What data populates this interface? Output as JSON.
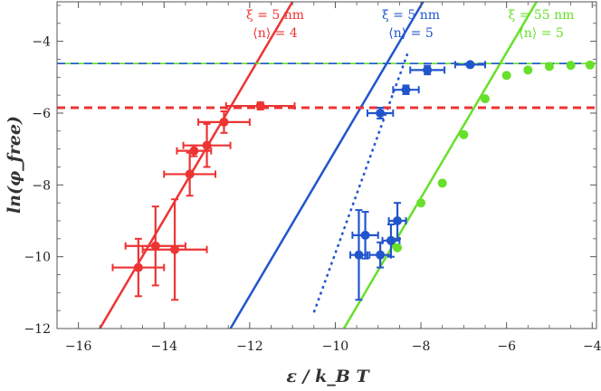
{
  "chart_data": {
    "type": "scatter",
    "title": "",
    "xlabel": "ε / k_B T",
    "ylabel": "ln(φ_free)",
    "xlim": [
      -16.5,
      -3.9
    ],
    "ylim": [
      -12,
      -2.9
    ],
    "xticks": [
      -16,
      -14,
      -12,
      -10,
      -8,
      -6,
      -4
    ],
    "xtick_labels": [
      "−16",
      "−14",
      "−12",
      "−10",
      "−8",
      "−6",
      "−4"
    ],
    "yticks": [
      -12,
      -10,
      -8,
      -6,
      -4
    ],
    "ytick_labels": [
      "−12",
      "−10",
      "−8",
      "−6",
      "−4"
    ],
    "colors": {
      "red": "#ee3333",
      "blue": "#2255cc",
      "green": "#66e02a"
    },
    "annotations": [
      {
        "line1": "ξ = 5 nm",
        "line2": "⟨n⟩ = 4",
        "color": "#ee3333"
      },
      {
        "line1": "ξ = 5 nm",
        "line2": "⟨n⟩ = 5",
        "color": "#2255cc"
      },
      {
        "line1": "ξ = 55 nm",
        "line2": "⟨n⟩ = 5",
        "color": "#66e02a"
      }
    ],
    "lines": [
      {
        "name": "red-fit",
        "color": "#ee3333",
        "dash": "solid",
        "x": [
          -15.5,
          -11.0
        ],
        "y": [
          -12,
          -2.9
        ]
      },
      {
        "name": "blue-fit",
        "color": "#2255cc",
        "dash": "solid",
        "x": [
          -12.45,
          -7.95
        ],
        "y": [
          -12,
          -2.9
        ]
      },
      {
        "name": "blue-dotted-fit",
        "color": "#2255cc",
        "dash": "dot",
        "x": [
          -10.5,
          -8.3
        ],
        "y": [
          -11.55,
          -4.3
        ]
      },
      {
        "name": "green-fit",
        "color": "#66e02a",
        "dash": "solid",
        "x": [
          -9.8,
          -5.3
        ],
        "y": [
          -12,
          -2.9
        ]
      },
      {
        "name": "red-plateau",
        "color": "#ee3333",
        "dash": "dash",
        "x": [
          -16.5,
          -3.9
        ],
        "y": [
          -5.85,
          -5.85
        ]
      },
      {
        "name": "green-plateau",
        "color": "#66e02a",
        "dash": "solid",
        "x": [
          -16.5,
          -3.9
        ],
        "y": [
          -4.62,
          -4.62
        ]
      },
      {
        "name": "blue-plateau",
        "color": "#2255cc",
        "dash": "dash",
        "x": [
          -16.5,
          -3.9
        ],
        "y": [
          -4.62,
          -4.62
        ]
      }
    ],
    "series": [
      {
        "name": "red data",
        "color": "#ee3333",
        "points": [
          {
            "x": -14.6,
            "y": -10.3,
            "xerr": 0.6,
            "yerr": 0.8
          },
          {
            "x": -14.2,
            "y": -9.7,
            "xerr": 0.7,
            "yerr": 1.1
          },
          {
            "x": -13.75,
            "y": -9.8,
            "xerr": 0.75,
            "yerr": 1.4
          },
          {
            "x": -13.4,
            "y": -7.7,
            "xerr": 0.6,
            "yerr": 0.6
          },
          {
            "x": -13.3,
            "y": -7.05,
            "xerr": 0.4,
            "yerr": 0.15
          },
          {
            "x": -13.0,
            "y": -6.9,
            "xerr": 0.55,
            "yerr": 0.6
          },
          {
            "x": -12.6,
            "y": -6.25,
            "xerr": 0.6,
            "yerr": 0.3
          },
          {
            "x": -11.75,
            "y": -5.8,
            "xerr": 0.8,
            "yerr": 0.1
          }
        ]
      },
      {
        "name": "blue data",
        "color": "#2255cc",
        "points": [
          {
            "x": -9.45,
            "y": -9.95,
            "xerr": 0.2,
            "yerr": 1.25
          },
          {
            "x": -9.3,
            "y": -9.4,
            "xerr": 0.3,
            "yerr": 0.65
          },
          {
            "x": -8.95,
            "y": -9.95,
            "xerr": 0.25,
            "yerr": 0.35
          },
          {
            "x": -8.7,
            "y": -9.55,
            "xerr": 0.2,
            "yerr": 0.45
          },
          {
            "x": -8.55,
            "y": -9.0,
            "xerr": 0.2,
            "yerr": 0.5
          },
          {
            "x": -8.95,
            "y": -6.0,
            "xerr": 0.3,
            "yerr": 0.15
          },
          {
            "x": -8.35,
            "y": -5.35,
            "xerr": 0.3,
            "yerr": 0.12
          },
          {
            "x": -7.85,
            "y": -4.8,
            "xerr": 0.4,
            "yerr": 0.12
          },
          {
            "x": -6.85,
            "y": -4.65,
            "xerr": 0.35,
            "yerr": 0.05
          }
        ]
      },
      {
        "name": "green data",
        "color": "#66e02a",
        "points": [
          {
            "x": -8.55,
            "y": -9.75
          },
          {
            "x": -8.0,
            "y": -8.5
          },
          {
            "x": -7.5,
            "y": -7.95
          },
          {
            "x": -7.0,
            "y": -6.6
          },
          {
            "x": -6.5,
            "y": -5.6
          },
          {
            "x": -6.0,
            "y": -4.95
          },
          {
            "x": -5.5,
            "y": -4.8
          },
          {
            "x": -5.0,
            "y": -4.7
          },
          {
            "x": -4.5,
            "y": -4.67
          },
          {
            "x": -4.05,
            "y": -4.66
          }
        ]
      }
    ]
  }
}
